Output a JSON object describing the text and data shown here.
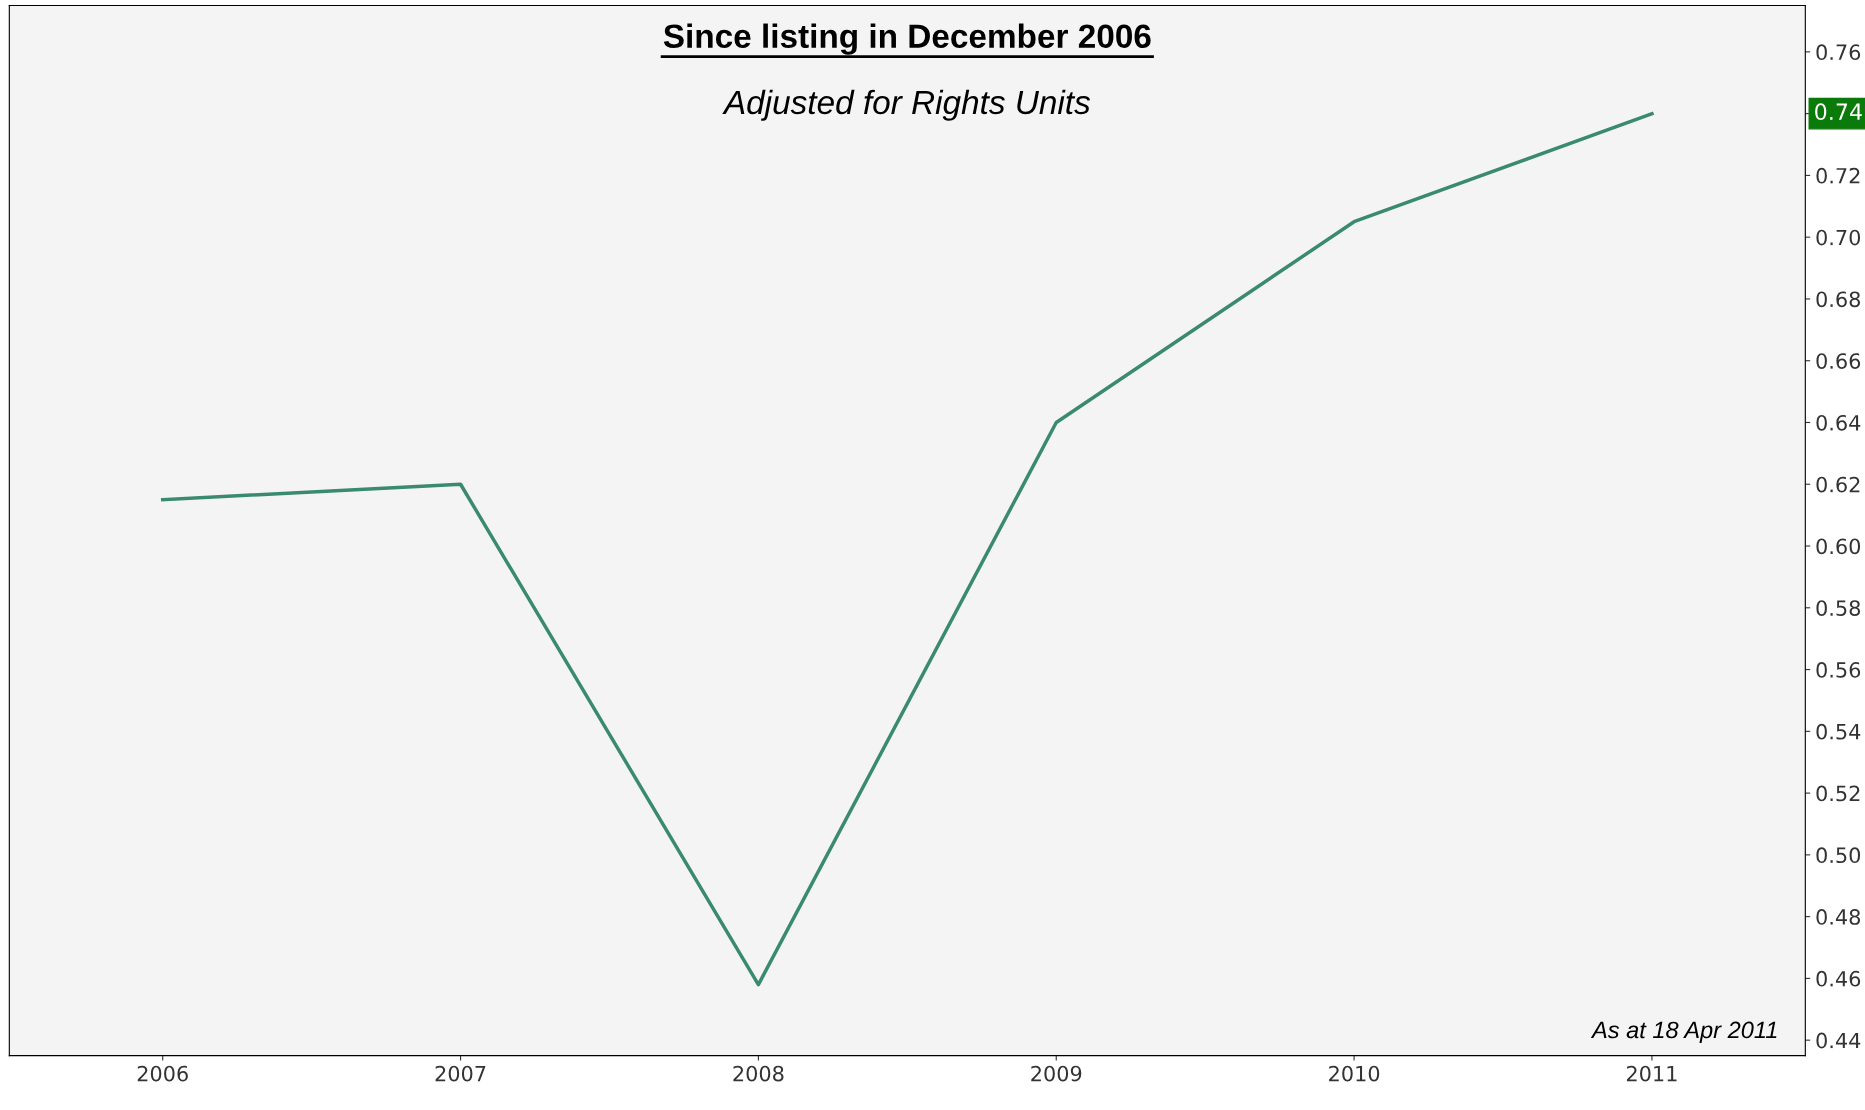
{
  "chart_data": {
    "type": "line",
    "title": "Since listing in December 2006",
    "subtitle": "Adjusted for Rights Units",
    "categories": [
      "2006",
      "2007",
      "2008",
      "2009",
      "2010",
      "2011"
    ],
    "series": [
      {
        "color": "#3a8a70",
        "values": [
          0.615,
          0.62,
          0.458,
          0.64,
          0.705,
          0.74
        ]
      }
    ],
    "ylim": [
      0.435,
      0.775
    ],
    "yticks": [
      0.44,
      0.46,
      0.48,
      {
        "value": 0.5,
        "label": "0.50"
      },
      0.52,
      0.54,
      0.56,
      0.58,
      {
        "value": 0.6,
        "label": "0.60"
      },
      0.62,
      0.64,
      0.66,
      0.68,
      {
        "value": 0.7,
        "label": "0.70"
      },
      0.72,
      {
        "value": 0.74,
        "label": null
      },
      0.76
    ],
    "annotations": [
      "As at 18 Apr 2011",
      "0.74"
    ],
    "grid": false,
    "legend": false,
    "marker": "none",
    "line_style": "solid"
  }
}
